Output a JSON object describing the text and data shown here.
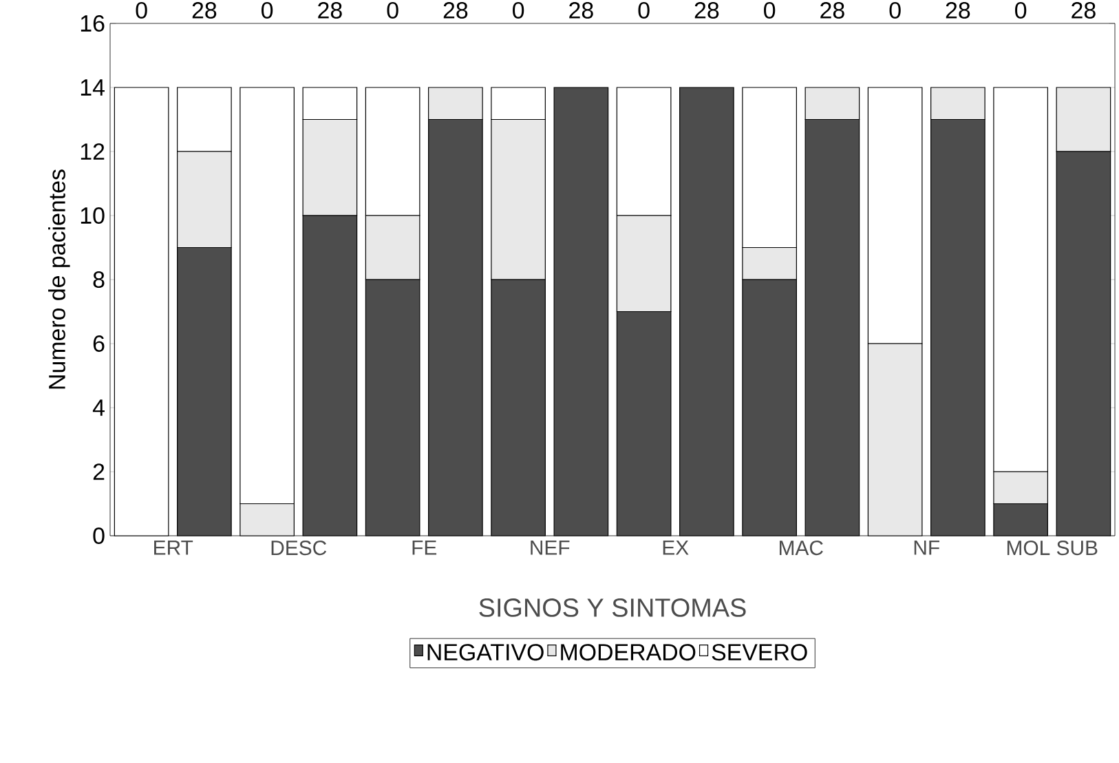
{
  "chart_data": {
    "type": "bar",
    "stacked": true,
    "categories": [
      "0",
      "28",
      "0",
      "28",
      "0",
      "28",
      "0",
      "28",
      "0",
      "28",
      "0",
      "28",
      "0",
      "28",
      "0",
      "28"
    ],
    "series": [
      {
        "name": "NEGATIVO",
        "color": "#4d4d4d",
        "values": [
          0,
          9,
          0,
          10,
          8,
          13,
          8,
          14,
          7,
          14,
          8,
          13,
          0,
          13,
          1,
          12
        ]
      },
      {
        "name": "MODERADO",
        "color": "#e8e8e8",
        "values": [
          0,
          3,
          1,
          3,
          2,
          1,
          5,
          0,
          3,
          0,
          1,
          1,
          6,
          1,
          1,
          2
        ]
      },
      {
        "name": "SEVERO",
        "color": "#ffffff",
        "values": [
          14,
          2,
          13,
          1,
          4,
          0,
          1,
          0,
          4,
          0,
          5,
          0,
          8,
          0,
          12,
          0
        ]
      }
    ],
    "annotations": [
      "ERT",
      "DESC",
      "FE",
      "NEF",
      "EX",
      "MAC",
      "NF",
      "MOL SUB"
    ],
    "xlabel": "SIGNOS Y SINTOMAS",
    "ylabel": "Numero de pacientes",
    "ylim": [
      0,
      16
    ],
    "yticks": [
      0,
      2,
      4,
      6,
      8,
      10,
      12,
      14,
      16
    ],
    "legend": "bottom"
  }
}
